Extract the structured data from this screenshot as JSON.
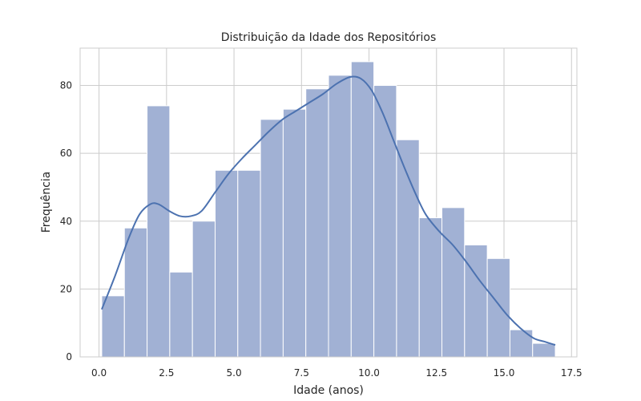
{
  "chart_data": {
    "type": "bar",
    "title": "Distribuição da Idade dos Repositórios",
    "xlabel": "Idade (anos)",
    "ylabel": "Frequência",
    "xlim": [
      -0.7,
      17.7
    ],
    "ylim": [
      0,
      91
    ],
    "xticks": [
      0.0,
      2.5,
      5.0,
      7.5,
      10.0,
      12.5,
      15.0,
      17.5
    ],
    "xtick_labels": [
      "0.0",
      "2.5",
      "5.0",
      "7.5",
      "10.0",
      "12.5",
      "15.0",
      "17.5"
    ],
    "yticks": [
      0,
      20,
      40,
      60,
      80
    ],
    "ytick_labels": [
      "0",
      "20",
      "40",
      "60",
      "80"
    ],
    "grid": true,
    "legend": "none",
    "bar_color": "#a1b1d4",
    "kde_color": "#4c72b0",
    "bins": [
      {
        "x0": 0.1,
        "x1": 0.94,
        "value": 18
      },
      {
        "x0": 0.94,
        "x1": 1.78,
        "value": 38
      },
      {
        "x0": 1.78,
        "x1": 2.62,
        "value": 74
      },
      {
        "x0": 2.62,
        "x1": 3.46,
        "value": 25
      },
      {
        "x0": 3.46,
        "x1": 4.3,
        "value": 40
      },
      {
        "x0": 4.3,
        "x1": 5.14,
        "value": 55
      },
      {
        "x0": 5.14,
        "x1": 5.98,
        "value": 55
      },
      {
        "x0": 5.98,
        "x1": 6.82,
        "value": 70
      },
      {
        "x0": 6.82,
        "x1": 7.66,
        "value": 73
      },
      {
        "x0": 7.66,
        "x1": 8.5,
        "value": 79
      },
      {
        "x0": 8.5,
        "x1": 9.34,
        "value": 83
      },
      {
        "x0": 9.34,
        "x1": 10.18,
        "value": 87
      },
      {
        "x0": 10.18,
        "x1": 11.02,
        "value": 80
      },
      {
        "x0": 11.02,
        "x1": 11.86,
        "value": 64
      },
      {
        "x0": 11.86,
        "x1": 12.7,
        "value": 41
      },
      {
        "x0": 12.7,
        "x1": 13.54,
        "value": 44
      },
      {
        "x0": 13.54,
        "x1": 14.38,
        "value": 33
      },
      {
        "x0": 14.38,
        "x1": 15.22,
        "value": 29
      },
      {
        "x0": 15.22,
        "x1": 16.06,
        "value": 8
      },
      {
        "x0": 16.06,
        "x1": 16.9,
        "value": 4
      }
    ],
    "kde": {
      "x": [
        0.1,
        0.6,
        1.1,
        1.5,
        1.9,
        2.2,
        2.6,
        3.0,
        3.4,
        3.8,
        4.3,
        4.8,
        5.3,
        5.8,
        6.3,
        6.8,
        7.3,
        7.8,
        8.3,
        8.8,
        9.3,
        9.7,
        10.1,
        10.5,
        10.9,
        11.3,
        11.7,
        12.1,
        12.6,
        13.1,
        13.6,
        14.1,
        14.6,
        15.1,
        15.6,
        16.1,
        16.5,
        16.9
      ],
      "y": [
        14,
        24,
        35,
        42,
        45,
        45,
        43,
        41.5,
        41.5,
        43,
        48.5,
        54,
        58.5,
        62.5,
        66.5,
        70,
        72.5,
        75,
        77.5,
        80.5,
        82.5,
        82,
        78.5,
        72,
        64,
        56,
        48.5,
        42,
        37,
        33,
        28,
        22.5,
        17.5,
        12.5,
        8.5,
        5.5,
        4.5,
        3.5
      ]
    }
  }
}
